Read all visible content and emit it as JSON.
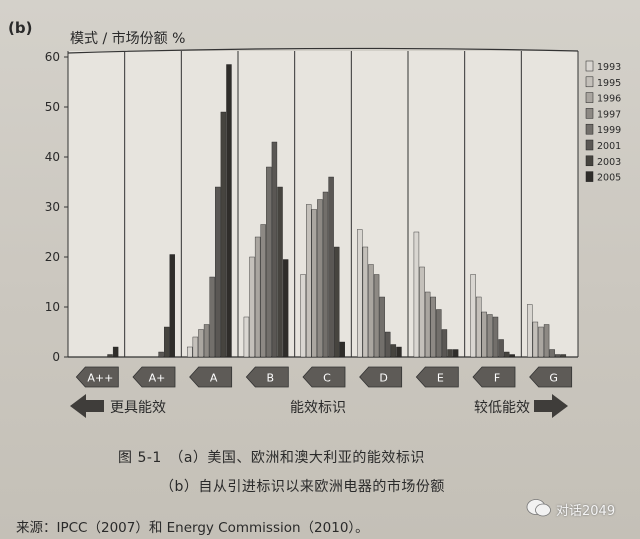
{
  "panel_label": "(b)",
  "caption": {
    "figure": "图 5-1　（a）美国、欧洲和澳大利亚的能效标识",
    "sub": "（b）自从引进标识以来欧洲电器的市场份额",
    "source": "来源：IPCC（2007）和 Energy Commission（2010）。"
  },
  "watermark": {
    "icon": "wechat-icon",
    "text": "对话2049"
  },
  "colors": {
    "1993": "#d9d6d1",
    "1995": "#c4c0ba",
    "1996": "#aaa6a0",
    "1997": "#8d8984",
    "1999": "#726f6b",
    "2001": "#5a5754",
    "2003": "#46443f",
    "2005": "#2f2d2a"
  },
  "chart_data": {
    "type": "bar",
    "title": "",
    "ylabel": "模式 / 市场份额 %",
    "xlabel": "",
    "ylim": [
      0,
      60
    ],
    "yticks": [
      0,
      10,
      20,
      30,
      40,
      50,
      60
    ],
    "legend_position": "right",
    "grid": false,
    "categories": [
      "A++",
      "A+",
      "A",
      "B",
      "C",
      "D",
      "E",
      "F",
      "G"
    ],
    "series": [
      {
        "name": "1993",
        "values": [
          0,
          0,
          2,
          8,
          16.5,
          25.5,
          25,
          16.5,
          10.5
        ]
      },
      {
        "name": "1995",
        "values": [
          0,
          0,
          4,
          20,
          30.5,
          22,
          18,
          12,
          7
        ]
      },
      {
        "name": "1996",
        "values": [
          0,
          0,
          5.5,
          24,
          29.5,
          18.5,
          13,
          9,
          6
        ]
      },
      {
        "name": "1997",
        "values": [
          0,
          0,
          6.5,
          26.5,
          31.5,
          16.5,
          12,
          8.5,
          6.5
        ]
      },
      {
        "name": "1999",
        "values": [
          0,
          0,
          16,
          38,
          33,
          12,
          9.5,
          8,
          1.5
        ]
      },
      {
        "name": "2001",
        "values": [
          0,
          1,
          34,
          43,
          36,
          5,
          5.5,
          3.5,
          0.5
        ]
      },
      {
        "name": "2003",
        "values": [
          0.5,
          6,
          49,
          34,
          22,
          2.5,
          1.5,
          1,
          0.5
        ]
      },
      {
        "name": "2005",
        "values": [
          2,
          20.5,
          58.5,
          19.5,
          3,
          2,
          1.5,
          0.5,
          0
        ]
      }
    ],
    "annotations": {
      "left": "更具能效",
      "center": "能效标识",
      "right": "较低能效"
    }
  }
}
